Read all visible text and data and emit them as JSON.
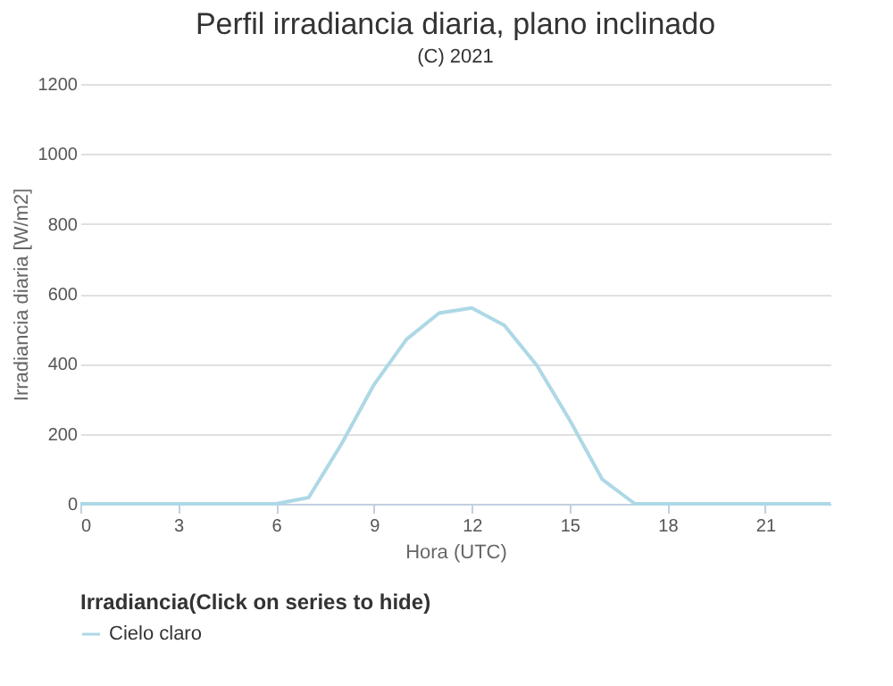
{
  "chart_data": {
    "type": "line",
    "title": "Perfil irradiancia diaria, plano inclinado",
    "subtitle": "(C) 2021",
    "xlabel": "Hora (UTC)",
    "ylabel": "Irradiancia diaria [W/m2]",
    "legend_title": "Irradiancia(Click on series to hide)",
    "x": [
      0,
      1,
      2,
      3,
      4,
      5,
      6,
      7,
      8,
      9,
      10,
      11,
      12,
      13,
      14,
      15,
      16,
      17,
      18,
      19,
      20,
      21,
      22,
      23
    ],
    "series": [
      {
        "name": "Cielo claro",
        "color": "#add8e6",
        "values": [
          0,
          0,
          0,
          0,
          0,
          0,
          0,
          18,
          170,
          340,
          470,
          545,
          560,
          510,
          395,
          240,
          70,
          0,
          0,
          0,
          0,
          0,
          0,
          0
        ]
      }
    ],
    "xlim": [
      0,
      23
    ],
    "xticks": [
      0,
      3,
      6,
      9,
      12,
      15,
      18,
      21
    ],
    "ylim": [
      0,
      1200
    ],
    "yticks": [
      0,
      200,
      400,
      600,
      800,
      1000,
      1200
    ],
    "grid": "y",
    "legend": "bottom",
    "marker": "none",
    "line_style": "solid"
  }
}
